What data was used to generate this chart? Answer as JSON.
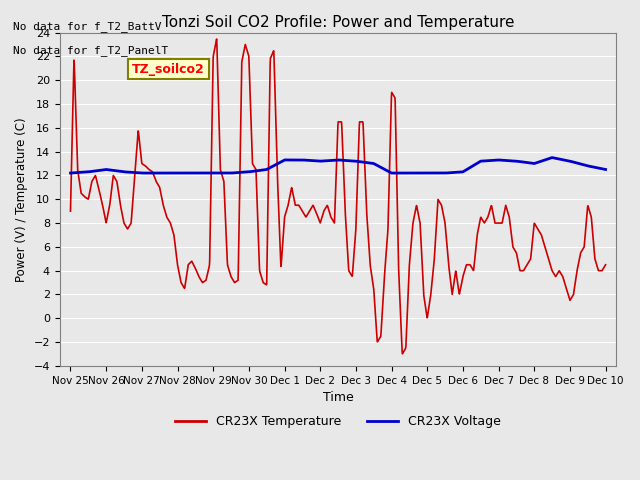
{
  "title": "Tonzi Soil CO2 Profile: Power and Temperature",
  "xlabel": "Time",
  "ylabel": "Power (V) / Temperature (C)",
  "ylim": [
    -4,
    24
  ],
  "yticks": [
    -4,
    -2,
    0,
    2,
    4,
    6,
    8,
    10,
    12,
    14,
    16,
    18,
    20,
    22,
    24
  ],
  "no_data_text1": "No data for f_T2_BattV",
  "no_data_text2": "No data for f_T2_PanelT",
  "legend_label_box": "TZ_soilco2",
  "legend_label_red": "CR23X Temperature",
  "legend_label_blue": "CR23X Voltage",
  "red_color": "#cc0000",
  "blue_color": "#0000cc",
  "bg_color": "#e8e8e8",
  "plot_bg_color": "#e8e8e8",
  "xtick_labels": [
    "Nov 25",
    "Nov 26",
    "Nov 27",
    "Nov 28",
    "Nov 29",
    "Nov 30",
    "Dec 1",
    "Dec 2",
    "Dec 3",
    "Dec 4",
    "Dec 5",
    "Dec 6",
    "Dec 7",
    "Dec 8",
    "Dec 9",
    "Dec 10"
  ],
  "red_x": [
    0,
    0.1,
    0.2,
    0.3,
    0.4,
    0.5,
    0.6,
    0.7,
    0.8,
    0.9,
    1.0,
    1.1,
    1.2,
    1.3,
    1.4,
    1.5,
    1.6,
    1.7,
    1.8,
    1.9,
    2.0,
    2.1,
    2.2,
    2.3,
    2.4,
    2.5,
    2.6,
    2.7,
    2.8,
    2.9,
    3.0,
    3.1,
    3.2,
    3.3,
    3.4,
    3.5,
    3.6,
    3.7,
    3.8,
    3.9,
    4.0,
    4.1,
    4.2,
    4.3,
    4.4,
    4.5,
    4.6,
    4.7,
    4.8,
    4.9,
    5.0,
    5.1,
    5.2,
    5.3,
    5.4,
    5.5,
    5.6,
    5.7,
    5.8,
    5.9,
    6.0,
    6.1,
    6.2,
    6.3,
    6.4,
    6.5,
    6.6,
    6.7,
    6.8,
    6.9,
    7.0,
    7.1,
    7.2,
    7.3,
    7.4,
    7.5,
    7.6,
    7.7,
    7.8,
    7.9,
    8.0,
    8.1,
    8.2,
    8.3,
    8.4,
    8.5,
    8.6,
    8.7,
    8.8,
    8.9,
    9.0,
    9.1,
    9.2,
    9.3,
    9.4,
    9.5,
    9.6,
    9.7,
    9.8,
    9.9,
    10.0,
    10.1,
    10.2,
    10.3,
    10.4,
    10.5,
    10.6,
    10.7,
    10.8,
    10.9,
    11.0,
    11.1,
    11.2,
    11.3,
    11.4,
    11.5,
    11.6,
    11.7,
    11.8,
    11.9,
    12.0,
    12.1,
    12.2,
    12.3,
    12.4,
    12.5,
    12.6,
    12.7,
    12.8,
    12.9,
    13.0,
    13.1,
    13.2,
    13.3,
    13.4,
    13.5,
    13.6,
    13.7,
    13.8,
    13.9,
    14.0,
    14.1,
    14.2,
    14.3,
    14.4,
    14.5,
    14.6,
    14.7,
    14.8,
    14.9,
    15.0
  ],
  "red_y": [
    9.0,
    22.0,
    12.5,
    10.5,
    10.2,
    10.0,
    11.5,
    12.0,
    10.8,
    9.5,
    8.0,
    9.5,
    12.0,
    11.5,
    9.5,
    8.0,
    7.5,
    8.0,
    12.0,
    15.8,
    13.0,
    12.8,
    12.5,
    12.3,
    11.5,
    11.0,
    9.5,
    8.5,
    8.0,
    7.0,
    4.5,
    3.0,
    2.5,
    4.5,
    4.8,
    4.2,
    3.5,
    3.0,
    3.2,
    4.5,
    22.0,
    23.5,
    12.5,
    11.5,
    4.5,
    3.5,
    3.0,
    3.2,
    21.5,
    23.0,
    22.0,
    13.0,
    12.5,
    4.0,
    3.0,
    2.8,
    21.8,
    22.5,
    12.0,
    4.2,
    8.5,
    9.5,
    11.0,
    9.5,
    9.5,
    9.0,
    8.5,
    9.0,
    9.5,
    8.8,
    8.0,
    9.0,
    9.5,
    8.5,
    8.0,
    16.5,
    16.5,
    9.0,
    4.0,
    3.5,
    7.5,
    16.5,
    16.5,
    9.0,
    4.5,
    2.5,
    -2.0,
    -1.5,
    3.5,
    7.5,
    19.0,
    18.5,
    4.0,
    -3.0,
    -2.5,
    4.5,
    8.0,
    9.5,
    8.0,
    2.0,
    0.0,
    2.0,
    5.0,
    10.0,
    9.5,
    8.0,
    4.5,
    2.0,
    4.0,
    2.0,
    3.5,
    4.5,
    4.5,
    4.0,
    7.0,
    8.5,
    8.0,
    8.5,
    9.5,
    8.0,
    8.0,
    8.0,
    9.5,
    8.5,
    6.0,
    5.5,
    4.0,
    4.0,
    4.5,
    5.0,
    8.0,
    7.5,
    7.0,
    6.0,
    5.0,
    4.0,
    3.5,
    4.0,
    3.5,
    2.5,
    1.5,
    2.0,
    4.0,
    5.5,
    6.0,
    9.5,
    8.5,
    5.0,
    4.0,
    4.0,
    4.5
  ],
  "blue_x": [
    0,
    0.5,
    1.0,
    1.5,
    2.0,
    2.5,
    3.0,
    3.5,
    4.0,
    4.5,
    5.0,
    5.5,
    6.0,
    6.5,
    7.0,
    7.5,
    8.0,
    8.5,
    9.0,
    9.5,
    10.0,
    10.5,
    11.0,
    11.5,
    12.0,
    12.5,
    13.0,
    13.5,
    14.0,
    14.5,
    15.0
  ],
  "blue_y": [
    12.2,
    12.3,
    12.5,
    12.3,
    12.2,
    12.2,
    12.2,
    12.2,
    12.2,
    12.2,
    12.3,
    12.5,
    13.3,
    13.3,
    13.2,
    13.3,
    13.2,
    13.0,
    12.2,
    12.2,
    12.2,
    12.2,
    12.3,
    13.2,
    13.3,
    13.2,
    13.0,
    13.5,
    13.2,
    12.8,
    12.5
  ]
}
